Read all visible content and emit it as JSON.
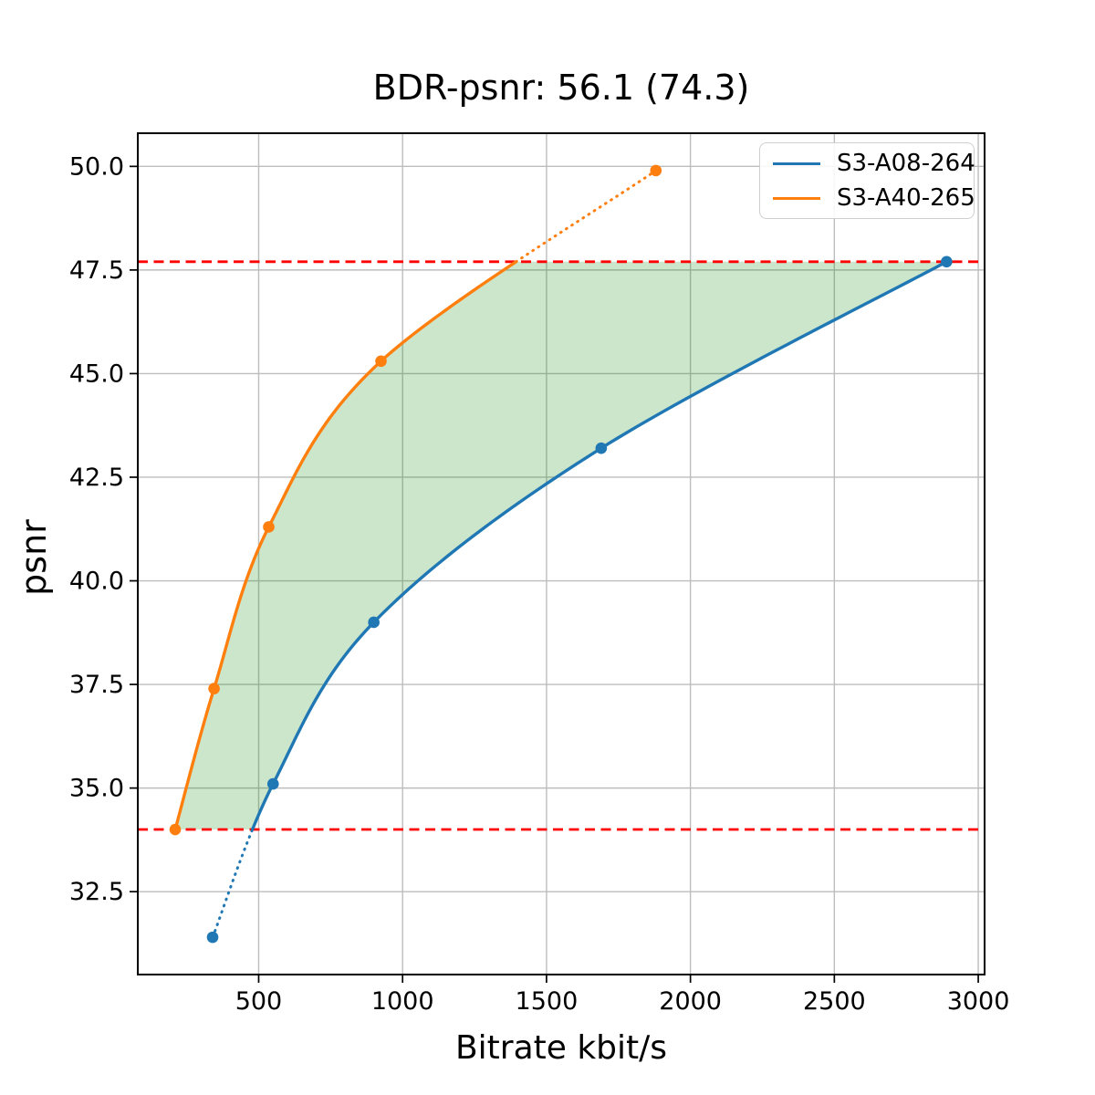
{
  "figure": {
    "title": "BDR-psnr: 56.1 (74.3)",
    "xlabel": "Bitrate kbit/s",
    "ylabel": "psnr"
  },
  "legend": {
    "position": "upper right",
    "entries": [
      {
        "label": "S3-A08-264",
        "color": "#1f77b4"
      },
      {
        "label": "S3-A40-265",
        "color": "#ff7f0e"
      }
    ]
  },
  "chart_data": {
    "type": "line",
    "title": "BDR-psnr: 56.1 (74.3)",
    "xlabel": "Bitrate kbit/s",
    "ylabel": "psnr",
    "xlim": [
      80,
      3022
    ],
    "ylim": [
      30.5,
      50.8
    ],
    "xticks": [
      500,
      1000,
      1500,
      2000,
      2500,
      3000
    ],
    "xtick_labels": [
      "500",
      "1000",
      "1500",
      "2000",
      "2500",
      "3000"
    ],
    "yticks": [
      32.5,
      35.0,
      37.5,
      40.0,
      42.5,
      45.0,
      47.5,
      50.0
    ],
    "ytick_labels": [
      "32.5",
      "35.0",
      "37.5",
      "40.0",
      "42.5",
      "45.0",
      "47.5",
      "50.0"
    ],
    "grid": true,
    "grid_color": "#bdbdbd",
    "legend_position": "upper right",
    "series": [
      {
        "name": "S3-A08-264",
        "color": "#1f77b4",
        "marker": "circle",
        "x": [
          340,
          550,
          900,
          1690,
          2890
        ],
        "y": [
          31.4,
          35.1,
          39.0,
          43.2,
          47.7
        ],
        "dotted_below_psnr": 34.0
      },
      {
        "name": "S3-A40-265",
        "color": "#ff7f0e",
        "marker": "circle",
        "x": [
          210,
          345,
          535,
          925,
          1880
        ],
        "y": [
          34.0,
          37.4,
          41.3,
          45.3,
          49.9
        ],
        "dotted_above_psnr": 47.7
      }
    ],
    "hlines": [
      {
        "y": 34.0,
        "color": "#ff0000",
        "style": "dashed",
        "meaning": "psnr overlap lower bound"
      },
      {
        "y": 47.7,
        "color": "#ff0000",
        "style": "dashed",
        "meaning": "psnr overlap upper bound"
      }
    ],
    "shaded_region": {
      "description": "area between the two rate-distortion curves clipped between the hlines",
      "fill_color": "#008000",
      "opacity": 0.2
    }
  }
}
